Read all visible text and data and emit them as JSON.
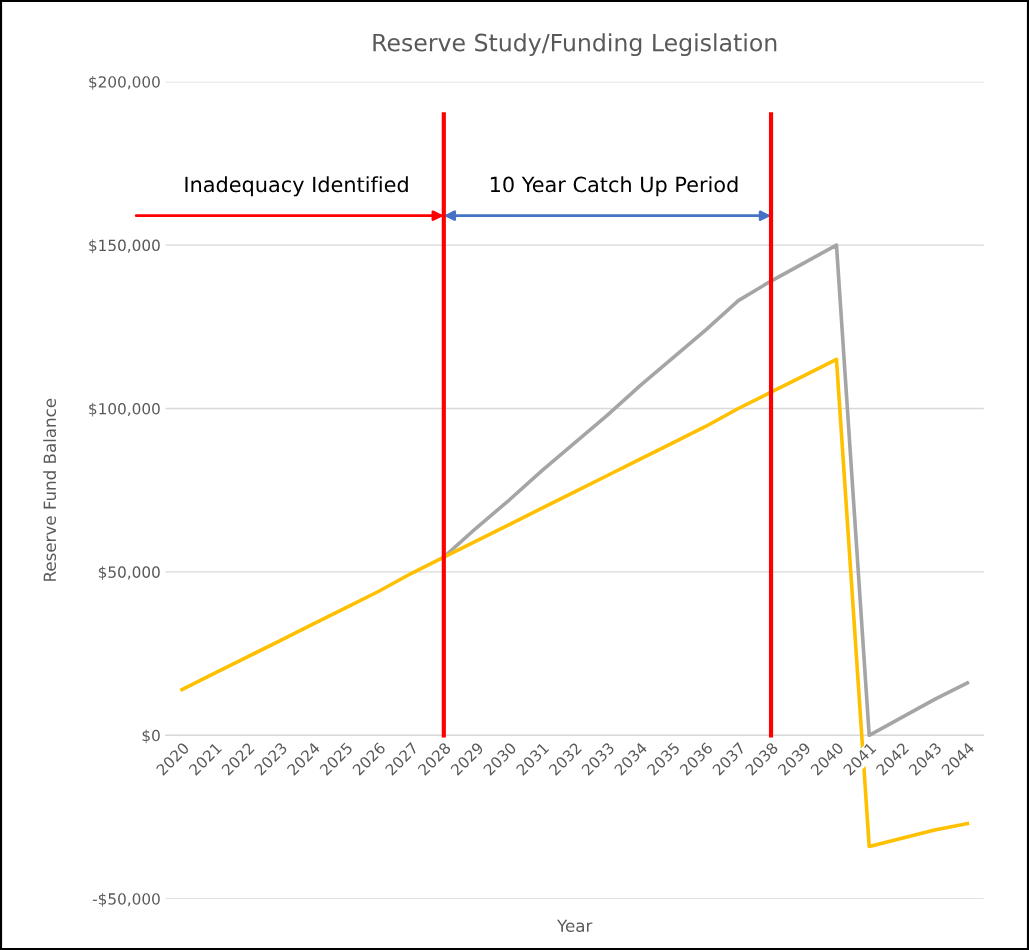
{
  "chart_data": {
    "type": "line",
    "title": "Reserve Study/Funding Legislation",
    "xlabel": "Year",
    "ylabel": "Reserve Fund Balance",
    "categories": [
      "2020",
      "2021",
      "2022",
      "2023",
      "2024",
      "2025",
      "2026",
      "2027",
      "2028",
      "2029",
      "2030",
      "2031",
      "2032",
      "2033",
      "2034",
      "2035",
      "2036",
      "2037",
      "2038",
      "2039",
      "2040",
      "2041",
      "2042",
      "2043",
      "2044"
    ],
    "series": [
      {
        "color": "#a5a5a5",
        "values": [
          null,
          null,
          null,
          null,
          null,
          null,
          null,
          null,
          54500,
          63500,
          72000,
          81000,
          89500,
          98000,
          107000,
          115500,
          124000,
          133000,
          139000,
          144500,
          150000,
          0,
          5500,
          11000,
          16000
        ]
      },
      {
        "color": "#ffc000",
        "values": [
          14000,
          19000,
          24000,
          29000,
          34000,
          39000,
          44000,
          49500,
          54500,
          59500,
          64500,
          69500,
          74500,
          79500,
          84500,
          89500,
          94500,
          100000,
          105000,
          110000,
          115000,
          -34000,
          -31500,
          -29000,
          -27000
        ]
      }
    ],
    "ylim": [
      -50000,
      200000
    ],
    "yticks": [
      {
        "value": -50000,
        "label": "-$50,000"
      },
      {
        "value": 0,
        "label": "$0"
      },
      {
        "value": 50000,
        "label": "$50,000"
      },
      {
        "value": 100000,
        "label": "$100,000"
      },
      {
        "value": 150000,
        "label": "$150,000"
      },
      {
        "value": 200000,
        "label": "$200,000"
      }
    ],
    "grid": "y",
    "marker": "none",
    "line_style": "solid",
    "ref_lines": [
      {
        "axis": "x",
        "value": "2028",
        "color": "#ff0000"
      },
      {
        "axis": "x",
        "value": "2038",
        "color": "#ff0000"
      }
    ],
    "annotations": [
      "Inadequacy Identified",
      "10 Year Catch Up Period"
    ]
  }
}
